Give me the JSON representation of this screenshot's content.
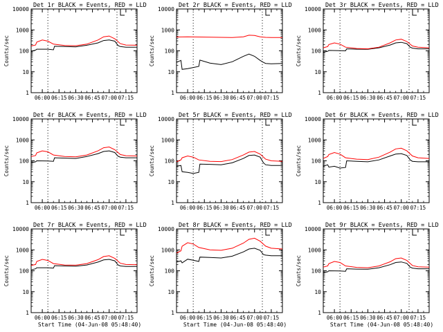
{
  "chart_data": [
    {
      "type": "line",
      "title": "Det 1r BLACK = Events, RED = LLD",
      "xlabel": "",
      "ylabel": "Counts/sec",
      "ylim": [
        1,
        10000
      ],
      "yscale": "log",
      "ytick_labels": [
        "1",
        "10",
        "100",
        "1000",
        "10000"
      ],
      "xtick_labels": [
        "06:00",
        "06:15",
        "06:30",
        "06:45",
        "07:00",
        "07:15"
      ],
      "xlim_minutes": [
        -10,
        85
      ],
      "event_lines_minutes": [
        5,
        67
      ],
      "series": [
        {
          "color": "#000000",
          "x": [
            -10,
            -6,
            -5,
            5,
            10,
            11,
            20,
            30,
            40,
            50,
            55,
            60,
            65,
            68,
            70,
            75,
            85
          ],
          "y": [
            95,
            108,
            120,
            120,
            112,
            165,
            160,
            155,
            185,
            240,
            310,
            330,
            290,
            180,
            160,
            150,
            150
          ]
        },
        {
          "color": "#ff0000",
          "x": [
            -10,
            -6,
            -5,
            0,
            5,
            10,
            20,
            30,
            40,
            50,
            55,
            60,
            65,
            70,
            75,
            85
          ],
          "y": [
            170,
            190,
            260,
            330,
            290,
            210,
            180,
            175,
            210,
            330,
            470,
            510,
            380,
            220,
            190,
            185
          ]
        }
      ]
    },
    {
      "type": "line",
      "title": "Det 2r BLACK = Events, RED = LLD",
      "xlabel": "",
      "ylabel": "Counts/sec",
      "ylim": [
        1,
        10000
      ],
      "yscale": "log",
      "ytick_labels": [
        "1",
        "10",
        "100",
        "1000",
        "10000"
      ],
      "xtick_labels": [
        "06:00",
        "06:15",
        "06:30",
        "06:45",
        "07:00",
        "07:15"
      ],
      "xlim_minutes": [
        -10,
        85
      ],
      "event_lines_minutes": [
        5,
        67
      ],
      "series": [
        {
          "color": "#000000",
          "x": [
            -10,
            -6,
            -5,
            0,
            5,
            10,
            11,
            20,
            30,
            40,
            50,
            55,
            60,
            65,
            68,
            70,
            75,
            85
          ],
          "y": [
            28,
            35,
            13,
            14,
            16,
            18,
            36,
            26,
            22,
            30,
            55,
            70,
            55,
            35,
            28,
            25,
            24,
            25
          ]
        },
        {
          "color": "#ff0000",
          "x": [
            -10,
            0,
            10,
            20,
            30,
            40,
            50,
            55,
            60,
            65,
            70,
            75,
            85
          ],
          "y": [
            460,
            470,
            460,
            450,
            440,
            430,
            470,
            560,
            540,
            470,
            440,
            430,
            430
          ]
        }
      ]
    },
    {
      "type": "line",
      "title": "Det 3r BLACK = Events, RED = LLD",
      "xlabel": "",
      "ylabel": "Counts/sec",
      "ylim": [
        1,
        10000
      ],
      "yscale": "log",
      "ytick_labels": [
        "1",
        "10",
        "100",
        "1000",
        "10000"
      ],
      "xtick_labels": [
        "06:00",
        "06:15",
        "06:30",
        "06:45",
        "07:00",
        "07:15"
      ],
      "xlim_minutes": [
        -10,
        85
      ],
      "event_lines_minutes": [
        5,
        67
      ],
      "series": [
        {
          "color": "#000000",
          "x": [
            -10,
            -6,
            -5,
            5,
            10,
            11,
            20,
            30,
            40,
            50,
            55,
            60,
            65,
            68,
            70,
            75,
            85
          ],
          "y": [
            85,
            95,
            105,
            102,
            100,
            125,
            120,
            118,
            140,
            190,
            240,
            255,
            220,
            150,
            135,
            125,
            125
          ]
        },
        {
          "color": "#ff0000",
          "x": [
            -10,
            -6,
            -5,
            0,
            5,
            10,
            20,
            30,
            40,
            50,
            55,
            60,
            65,
            70,
            75,
            85
          ],
          "y": [
            140,
            160,
            200,
            240,
            210,
            150,
            130,
            125,
            150,
            240,
            330,
            360,
            280,
            170,
            150,
            140
          ]
        }
      ]
    },
    {
      "type": "line",
      "title": "Det 4r BLACK = Events, RED = LLD",
      "xlabel": "",
      "ylabel": "Counts/sec",
      "ylim": [
        1,
        10000
      ],
      "yscale": "log",
      "ytick_labels": [
        "1",
        "10",
        "100",
        "1000",
        "10000"
      ],
      "xtick_labels": [
        "06:00",
        "06:15",
        "06:30",
        "06:45",
        "07:00",
        "07:15"
      ],
      "xlim_minutes": [
        -10,
        85
      ],
      "event_lines_minutes": [
        5,
        67
      ],
      "series": [
        {
          "color": "#000000",
          "x": [
            -10,
            -6,
            -5,
            5,
            10,
            11,
            20,
            30,
            40,
            50,
            55,
            60,
            65,
            68,
            70,
            75,
            85
          ],
          "y": [
            80,
            90,
            100,
            98,
            95,
            140,
            135,
            130,
            160,
            220,
            280,
            300,
            250,
            165,
            150,
            140,
            140
          ]
        },
        {
          "color": "#ff0000",
          "x": [
            -10,
            -6,
            -5,
            0,
            5,
            10,
            20,
            30,
            40,
            50,
            55,
            60,
            65,
            70,
            75,
            85
          ],
          "y": [
            160,
            180,
            240,
            300,
            270,
            190,
            160,
            155,
            190,
            300,
            420,
            460,
            340,
            200,
            175,
            170
          ]
        }
      ]
    },
    {
      "type": "line",
      "title": "Det 5r BLACK = Events, RED = LLD",
      "xlabel": "",
      "ylabel": "Counts/sec",
      "ylim": [
        1,
        10000
      ],
      "yscale": "log",
      "ytick_labels": [
        "1",
        "10",
        "100",
        "1000",
        "10000"
      ],
      "xtick_labels": [
        "06:00",
        "06:15",
        "06:30",
        "06:45",
        "07:00",
        "07:15"
      ],
      "xlim_minutes": [
        -10,
        85
      ],
      "event_lines_minutes": [
        5,
        67
      ],
      "series": [
        {
          "color": "#000000",
          "x": [
            -10,
            -6,
            -5,
            0,
            5,
            10,
            11,
            20,
            30,
            40,
            50,
            55,
            60,
            65,
            68,
            70,
            75,
            85
          ],
          "y": [
            55,
            60,
            30,
            28,
            25,
            28,
            70,
            68,
            65,
            80,
            130,
            180,
            190,
            150,
            80,
            65,
            60,
            60
          ]
        },
        {
          "color": "#ff0000",
          "x": [
            -10,
            -6,
            -5,
            0,
            5,
            10,
            20,
            30,
            40,
            50,
            55,
            60,
            65,
            70,
            75,
            85
          ],
          "y": [
            90,
            110,
            140,
            170,
            150,
            110,
            95,
            92,
            115,
            190,
            260,
            280,
            210,
            120,
            100,
            95
          ]
        }
      ]
    },
    {
      "type": "line",
      "title": "Det 6r BLACK = Events, RED = LLD",
      "xlabel": "",
      "ylabel": "Counts/sec",
      "ylim": [
        1,
        10000
      ],
      "yscale": "log",
      "ytick_labels": [
        "1",
        "10",
        "100",
        "1000",
        "10000"
      ],
      "xtick_labels": [
        "06:00",
        "06:15",
        "06:30",
        "06:45",
        "07:00",
        "07:15"
      ],
      "xlim_minutes": [
        -10,
        85
      ],
      "event_lines_minutes": [
        5,
        67
      ],
      "series": [
        {
          "color": "#000000",
          "x": [
            -10,
            -6,
            -5,
            0,
            5,
            10,
            11,
            20,
            30,
            40,
            50,
            55,
            60,
            65,
            68,
            70,
            75,
            85
          ],
          "y": [
            55,
            65,
            50,
            55,
            45,
            48,
            100,
            95,
            90,
            110,
            170,
            210,
            220,
            180,
            110,
            95,
            90,
            90
          ]
        },
        {
          "color": "#ff0000",
          "x": [
            -10,
            -6,
            -5,
            0,
            5,
            10,
            20,
            30,
            40,
            50,
            55,
            60,
            65,
            70,
            75,
            85
          ],
          "y": [
            130,
            160,
            200,
            250,
            210,
            140,
            120,
            115,
            150,
            260,
            370,
            400,
            300,
            170,
            140,
            130
          ]
        }
      ]
    },
    {
      "type": "line",
      "title": "Det 7r BLACK = Events, RED = LLD",
      "xlabel": "Start Time (04-Jun-08 05:48:40)",
      "ylabel": "Counts/sec",
      "ylim": [
        1,
        10000
      ],
      "yscale": "log",
      "ytick_labels": [
        "1",
        "10",
        "100",
        "1000",
        "10000"
      ],
      "xtick_labels": [
        "06:00",
        "06:15",
        "06:30",
        "06:45",
        "07:00",
        "07:15"
      ],
      "xlim_minutes": [
        -10,
        85
      ],
      "event_lines_minutes": [
        5,
        67
      ],
      "series": [
        {
          "color": "#000000",
          "x": [
            -10,
            -6,
            -5,
            5,
            10,
            11,
            20,
            30,
            40,
            50,
            55,
            60,
            65,
            68,
            70,
            75,
            85
          ],
          "y": [
            110,
            125,
            140,
            140,
            135,
            175,
            170,
            165,
            190,
            260,
            330,
            350,
            300,
            190,
            170,
            160,
            160
          ]
        },
        {
          "color": "#ff0000",
          "x": [
            -10,
            -6,
            -5,
            0,
            5,
            10,
            20,
            30,
            40,
            50,
            55,
            60,
            65,
            70,
            75,
            85
          ],
          "y": [
            180,
            200,
            280,
            350,
            310,
            220,
            190,
            185,
            220,
            340,
            480,
            520,
            390,
            230,
            200,
            195
          ]
        }
      ]
    },
    {
      "type": "line",
      "title": "Det 8r BLACK = Events, RED = LLD",
      "xlabel": "Start Time (04-Jun-08 05:48:40)",
      "ylabel": "Counts/sec",
      "ylim": [
        1,
        10000
      ],
      "yscale": "log",
      "ytick_labels": [
        "1",
        "10",
        "100",
        "1000",
        "10000"
      ],
      "xtick_labels": [
        "06:00",
        "06:15",
        "06:30",
        "06:45",
        "07:00",
        "07:15"
      ],
      "xlim_minutes": [
        -10,
        85
      ],
      "event_lines_minutes": [
        5,
        67
      ],
      "series": [
        {
          "color": "#000000",
          "x": [
            -10,
            -6,
            -5,
            0,
            5,
            10,
            11,
            20,
            30,
            40,
            50,
            55,
            60,
            65,
            68,
            70,
            75,
            85
          ],
          "y": [
            260,
            300,
            240,
            360,
            320,
            280,
            450,
            430,
            410,
            500,
            800,
            1100,
            1200,
            950,
            600,
            560,
            520,
            520
          ]
        },
        {
          "color": "#ff0000",
          "x": [
            -10,
            -6,
            -5,
            0,
            5,
            10,
            20,
            30,
            40,
            50,
            55,
            60,
            65,
            70,
            75,
            85
          ],
          "y": [
            700,
            900,
            1500,
            2200,
            1900,
            1300,
            1000,
            950,
            1200,
            2100,
            3200,
            3600,
            2600,
            1500,
            1200,
            1100
          ]
        }
      ]
    },
    {
      "type": "line",
      "title": "Det 9r BLACK = Events, RED = LLD",
      "xlabel": "Start Time (04-Jun-08 05:48:40)",
      "ylabel": "Counts/sec",
      "ylim": [
        1,
        10000
      ],
      "yscale": "log",
      "ytick_labels": [
        "1",
        "10",
        "100",
        "1000",
        "10000"
      ],
      "xtick_labels": [
        "06:00",
        "06:15",
        "06:30",
        "06:45",
        "07:00",
        "07:15"
      ],
      "xlim_minutes": [
        -10,
        85
      ],
      "event_lines_minutes": [
        5,
        67
      ],
      "series": [
        {
          "color": "#000000",
          "x": [
            -10,
            -6,
            -5,
            5,
            10,
            11,
            20,
            30,
            40,
            50,
            55,
            60,
            65,
            68,
            70,
            75,
            85
          ],
          "y": [
            80,
            90,
            100,
            98,
            95,
            125,
            120,
            118,
            140,
            195,
            250,
            265,
            225,
            150,
            135,
            125,
            125
          ]
        },
        {
          "color": "#ff0000",
          "x": [
            -10,
            -6,
            -5,
            0,
            5,
            10,
            20,
            30,
            40,
            50,
            55,
            60,
            65,
            70,
            75,
            85
          ],
          "y": [
            150,
            170,
            220,
            280,
            250,
            170,
            145,
            140,
            170,
            270,
            380,
            410,
            310,
            180,
            155,
            150
          ]
        }
      ]
    }
  ]
}
